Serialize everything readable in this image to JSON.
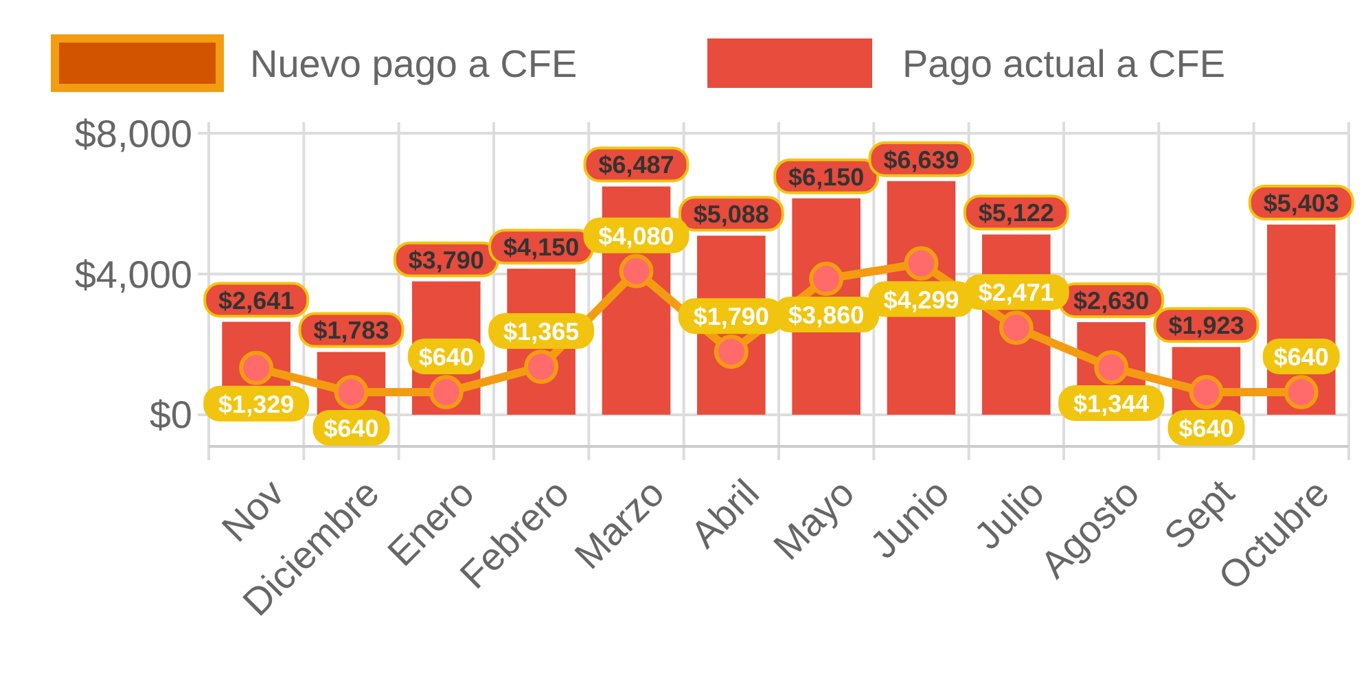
{
  "chart_data": {
    "type": "bar",
    "categories": [
      "Nov",
      "Diciembre",
      "Enero",
      "Febrero",
      "Marzo",
      "Abril",
      "Mayo",
      "Junio",
      "Julio",
      "Agosto",
      "Sept",
      "Octubre"
    ],
    "series": [
      {
        "name": "Nuevo pago a CFE",
        "type": "line",
        "color": "#f39c12",
        "values": [
          1329,
          640,
          640,
          1365,
          4080,
          1790,
          3860,
          4299,
          2471,
          1344,
          640,
          640
        ],
        "value_labels": [
          "$1,329",
          "$640",
          "$640",
          "$1,365",
          "$4,080",
          "$1,790",
          "$3,860",
          "$4,299",
          "$2,471",
          "$1,344",
          "$640",
          "$640"
        ]
      },
      {
        "name": "Pago actual a CFE",
        "color": "#e74c3c",
        "values": [
          2641,
          1783,
          3790,
          4150,
          6487,
          5088,
          6150,
          6639,
          5122,
          2630,
          1923,
          5403
        ],
        "value_labels": [
          "$2,641",
          "$1,783",
          "$3,790",
          "$4,150",
          "$6,487",
          "$5,088",
          "$6,150",
          "$6,639",
          "$5,122",
          "$2,630",
          "$1,923",
          "$5,403"
        ]
      }
    ],
    "ylim": [
      -900,
      8000
    ],
    "yticks": [
      {
        "value": 0,
        "label": "$0"
      },
      {
        "value": 4000,
        "label": "$4,000"
      },
      {
        "value": 8000,
        "label": "$8,000"
      }
    ],
    "grid": true,
    "legend": "top",
    "marker": "circle"
  }
}
